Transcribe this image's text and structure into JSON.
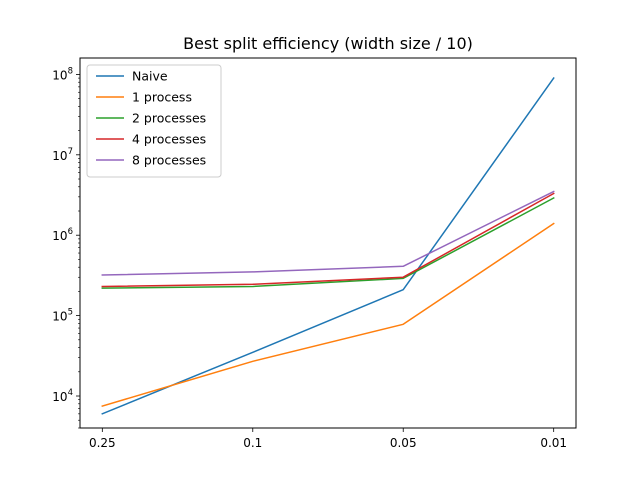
{
  "chart_data": {
    "type": "line",
    "title": "Best split efficiency (width size / 10)",
    "xlabel": "",
    "ylabel": "",
    "x_scale": "categorical",
    "y_scale": "log",
    "categories": [
      "0.25",
      "0.1",
      "0.05",
      "0.01"
    ],
    "ylim": [
      4000,
      160000000
    ],
    "y_ticks": [
      {
        "value": 10000,
        "base": "10",
        "exp": "4"
      },
      {
        "value": 100000,
        "base": "10",
        "exp": "5"
      },
      {
        "value": 1000000,
        "base": "10",
        "exp": "6"
      },
      {
        "value": 10000000,
        "base": "10",
        "exp": "7"
      },
      {
        "value": 100000000,
        "base": "10",
        "exp": "8"
      }
    ],
    "grid": false,
    "legend_position": "top-left",
    "series": [
      {
        "name": "Naive",
        "color": "#1f77b4",
        "values": [
          6000,
          35000,
          210000,
          90000000
        ]
      },
      {
        "name": "1 process",
        "color": "#ff7f0e",
        "values": [
          7500,
          27000,
          78000,
          1400000
        ]
      },
      {
        "name": "2 processes",
        "color": "#2ca02c",
        "values": [
          220000,
          230000,
          290000,
          2900000
        ]
      },
      {
        "name": "4 processes",
        "color": "#d62728",
        "values": [
          230000,
          245000,
          300000,
          3300000
        ]
      },
      {
        "name": "8 processes",
        "color": "#9467bd",
        "values": [
          320000,
          350000,
          410000,
          3500000
        ]
      }
    ]
  }
}
